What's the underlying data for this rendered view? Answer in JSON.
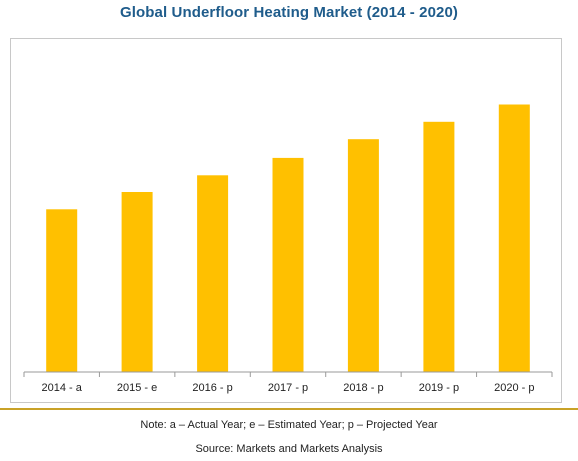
{
  "title": "Global Underfloor Heating Market (2014 - 2020)",
  "note": "Note: a – Actual Year; e – Estimated Year; p – Projected Year",
  "source": "Source: Markets and Markets Analysis",
  "colors": {
    "bar": "#FFC000",
    "title": "#1f5c8b",
    "rule": "#c9a227",
    "axis": "#9a9a9a"
  },
  "chart_data": {
    "type": "bar",
    "title": "Global Underfloor Heating Market (2014 - 2020)",
    "xlabel": "",
    "ylabel": "",
    "categories": [
      "2014 - a",
      "2015 - e",
      "2016 - p",
      "2017 - p",
      "2018 - p",
      "2019 - p",
      "2020 - p"
    ],
    "values": [
      48.7,
      53.9,
      58.9,
      64.1,
      69.7,
      74.9,
      80.1
    ],
    "ylim": [
      0,
      100
    ],
    "grid": false,
    "legend": "none",
    "y_axis_labels_shown": false
  }
}
